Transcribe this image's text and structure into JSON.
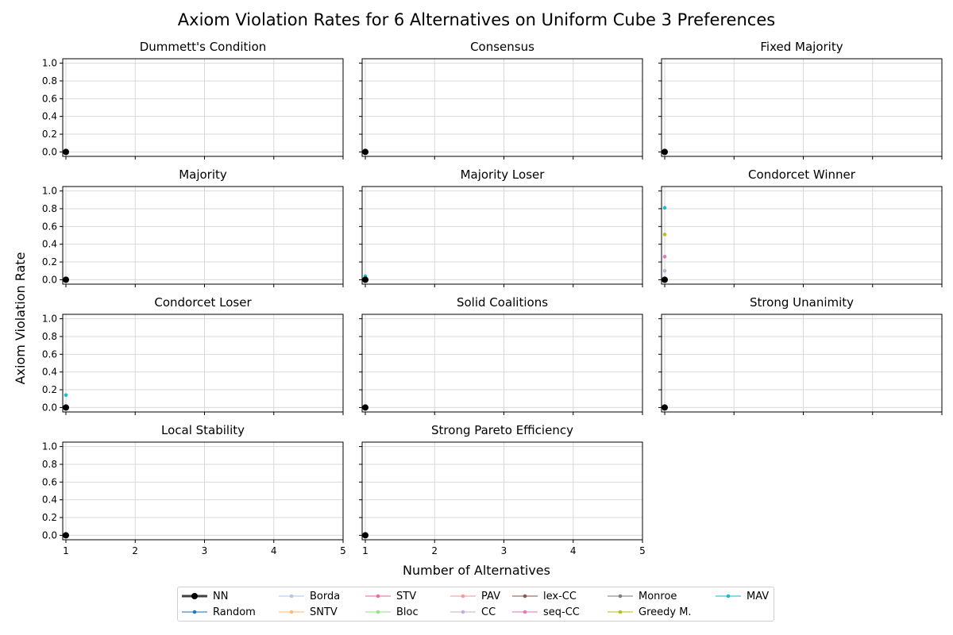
{
  "chart_data": {
    "type": "scatter",
    "title": "Axiom Violation Rates for 6 Alternatives on Uniform Cube 3 Preferences",
    "xlabel": "Number of Alternatives",
    "ylabel": "Axiom Violation Rate",
    "xlim": [
      1,
      5
    ],
    "ylim": [
      -0.05,
      1.05
    ],
    "xticks": [
      "1",
      "2",
      "3",
      "4",
      "5"
    ],
    "yticks": [
      "0.0",
      "0.2",
      "0.4",
      "0.6",
      "0.8",
      "1.0"
    ],
    "grid": true,
    "legend_position": "bottom-center",
    "methods": [
      {
        "name": "NN",
        "color": "#000000"
      },
      {
        "name": "Random",
        "color": "#1f77b4"
      },
      {
        "name": "Borda",
        "color": "#aec7e8"
      },
      {
        "name": "SNTV",
        "color": "#ffbb78"
      },
      {
        "name": "STV",
        "color": "#f768a1"
      },
      {
        "name": "Bloc",
        "color": "#98df8a"
      },
      {
        "name": "PAV",
        "color": "#ff9896"
      },
      {
        "name": "CC",
        "color": "#c5b0d5"
      },
      {
        "name": "lex-CC",
        "color": "#8c564b"
      },
      {
        "name": "seq-CC",
        "color": "#e377c2"
      },
      {
        "name": "Monroe",
        "color": "#7f7f7f"
      },
      {
        "name": "Greedy M.",
        "color": "#bcbd22"
      },
      {
        "name": "MAV",
        "color": "#17becf"
      }
    ],
    "panels": [
      {
        "title": "Dummett's Condition",
        "points": [
          {
            "method": "NN",
            "x": 1,
            "y": 0.0
          }
        ]
      },
      {
        "title": "Consensus",
        "points": [
          {
            "method": "NN",
            "x": 1,
            "y": 0.0
          }
        ]
      },
      {
        "title": "Fixed Majority",
        "points": [
          {
            "method": "NN",
            "x": 1,
            "y": 0.0
          }
        ]
      },
      {
        "title": "Majority",
        "points": [
          {
            "method": "NN",
            "x": 1,
            "y": 0.0
          }
        ]
      },
      {
        "title": "Majority Loser",
        "points": [
          {
            "method": "MAV",
            "x": 1,
            "y": 0.04
          },
          {
            "method": "NN",
            "x": 1,
            "y": 0.0
          }
        ]
      },
      {
        "title": "Condorcet Winner",
        "points": [
          {
            "method": "MAV",
            "x": 1,
            "y": 0.81
          },
          {
            "method": "Greedy M.",
            "x": 1,
            "y": 0.51
          },
          {
            "method": "seq-CC",
            "x": 1,
            "y": 0.26
          },
          {
            "method": "CC",
            "x": 1,
            "y": 0.1
          },
          {
            "method": "NN",
            "x": 1,
            "y": 0.0
          }
        ]
      },
      {
        "title": "Condorcet Loser",
        "points": [
          {
            "method": "MAV",
            "x": 1,
            "y": 0.14
          },
          {
            "method": "NN",
            "x": 1,
            "y": 0.0
          }
        ]
      },
      {
        "title": "Solid Coalitions",
        "points": [
          {
            "method": "NN",
            "x": 1,
            "y": 0.0
          }
        ]
      },
      {
        "title": "Strong Unanimity",
        "points": [
          {
            "method": "NN",
            "x": 1,
            "y": 0.0
          }
        ]
      },
      {
        "title": "Local Stability",
        "points": [
          {
            "method": "NN",
            "x": 1,
            "y": 0.0
          }
        ]
      },
      {
        "title": "Strong Pareto Efficiency",
        "points": [
          {
            "method": "NN",
            "x": 1,
            "y": 0.0
          }
        ]
      }
    ]
  }
}
